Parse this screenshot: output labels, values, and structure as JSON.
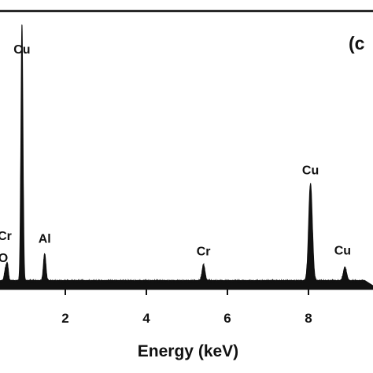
{
  "chart_data": {
    "type": "line",
    "panel_label": "(c",
    "xlabel": "Energy (keV)",
    "ylabel": "",
    "xlim": [
      0,
      9.1
    ],
    "x_ticks": [
      2,
      4,
      6,
      8
    ],
    "x_tick_labels": [
      "2",
      "4",
      "6",
      "8"
    ],
    "series": [
      {
        "peaks": [
          {
            "element": "O",
            "x": 0.52,
            "height": 0.04,
            "width": 0.05
          },
          {
            "element": "Cr",
            "x": 0.57,
            "height": 0.06,
            "width": 0.05
          },
          {
            "element": "Cu",
            "x": 0.93,
            "height": 0.95,
            "width": 0.05
          },
          {
            "element": "Al",
            "x": 1.49,
            "height": 0.1,
            "width": 0.06
          },
          {
            "element": "Cr",
            "x": 5.41,
            "height": 0.06,
            "width": 0.07
          },
          {
            "element": "Cu",
            "x": 8.05,
            "height": 0.36,
            "width": 0.09
          },
          {
            "element": "Cu",
            "x": 8.9,
            "height": 0.05,
            "width": 0.08
          }
        ],
        "baseline": 0.012
      }
    ],
    "annotations": [
      {
        "text": "Cu",
        "x": 0.93
      },
      {
        "text": "Cr",
        "x": 0.57
      },
      {
        "text": "O",
        "x": 0.52
      },
      {
        "text": "Al",
        "x": 1.49
      },
      {
        "text": "Cr",
        "x": 5.41
      },
      {
        "text": "Cu",
        "x": 8.05
      },
      {
        "text": "Cu",
        "x": 8.9
      }
    ]
  }
}
